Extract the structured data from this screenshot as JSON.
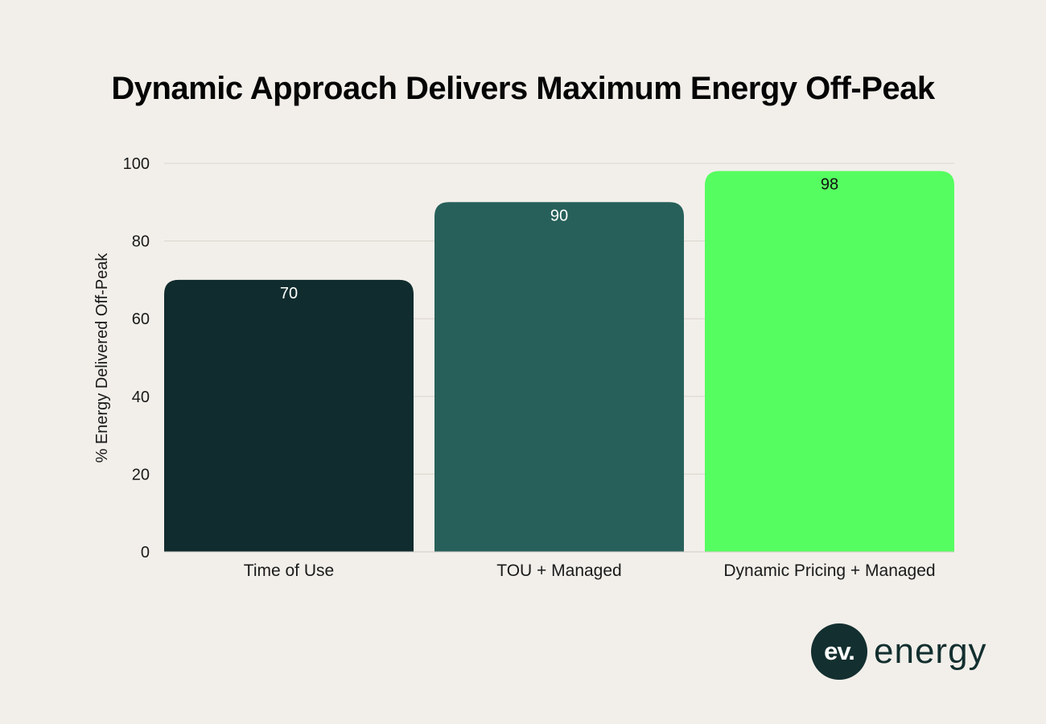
{
  "chart_data": {
    "type": "bar",
    "title": "Dynamic Approach Delivers Maximum Energy Off-Peak",
    "xlabel": "",
    "ylabel": "% Energy Delivered Off-Peak",
    "categories": [
      "Time of Use",
      "TOU + Managed",
      "Dynamic Pricing + Managed"
    ],
    "values": [
      70,
      90,
      98
    ],
    "bar_colors": [
      "#112c2e",
      "#27605a",
      "#55fd60"
    ],
    "value_label_colors": [
      "#ffffff",
      "#ffffff",
      "#111111"
    ],
    "ylim": [
      0,
      100
    ],
    "yticks": [
      0,
      20,
      40,
      60,
      80,
      100
    ],
    "grid": true
  },
  "brand": {
    "mark": "ev.",
    "word": "energy",
    "color": "#132f2f"
  }
}
